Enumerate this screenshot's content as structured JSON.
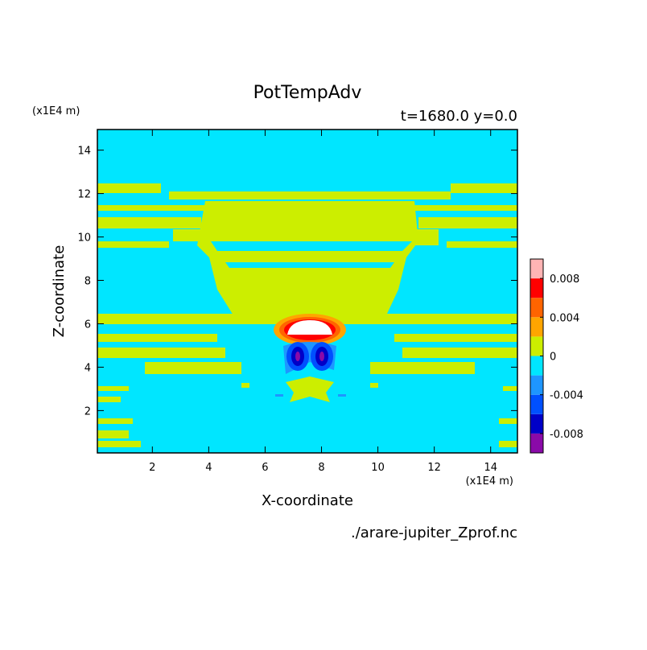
{
  "chart_data": {
    "type": "contour",
    "title": "PotTempAdv",
    "subtitle": "t=1680.0 y=0.0",
    "x_label": "X-coordinate",
    "y_label": "Z-coordinate",
    "x_unit": "(x1E4 m)",
    "y_unit": "(x1E4 m)",
    "source": "./arare-jupiter_Zprof.nc",
    "xlim": [
      0.05,
      14.95
    ],
    "ylim": [
      0.05,
      14.95
    ],
    "xticks": [
      2,
      4,
      6,
      8,
      10,
      12,
      14
    ],
    "yticks": [
      2,
      4,
      6,
      8,
      10,
      12,
      14
    ],
    "levels": [
      -0.01,
      -0.008,
      -0.006,
      -0.004,
      -0.002,
      0,
      0.002,
      0.004,
      0.006,
      0.008,
      0.01
    ],
    "colors": [
      "#8a0aa8",
      "#0000c8",
      "#0050ff",
      "#1e96ff",
      "#00e6ff",
      "#ccee00",
      "#ffa500",
      "#ff6400",
      "#ff0000",
      "#ffb4b4"
    ],
    "colorbar_ticks": [
      -0.008,
      -0.004,
      0,
      0.004,
      0.008
    ]
  }
}
